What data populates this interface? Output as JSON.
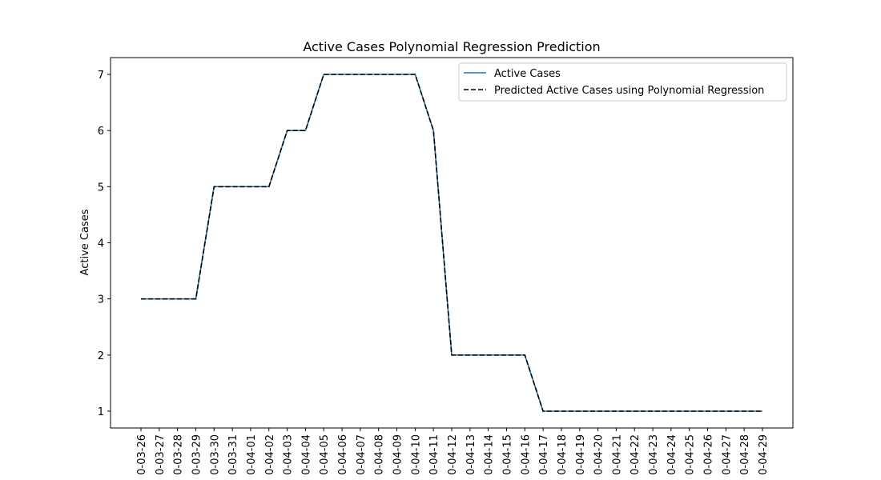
{
  "chart_data": {
    "type": "line",
    "title": "Active Cases Polynomial Regression Prediction",
    "xlabel": "",
    "ylabel": "Active Cases",
    "x": [
      "0-03-26",
      "0-03-27",
      "0-03-28",
      "0-03-29",
      "0-03-30",
      "0-03-31",
      "0-04-01",
      "0-04-02",
      "0-04-03",
      "0-04-04",
      "0-04-05",
      "0-04-06",
      "0-04-07",
      "0-04-08",
      "0-04-09",
      "0-04-10",
      "0-04-11",
      "0-04-12",
      "0-04-13",
      "0-04-14",
      "0-04-15",
      "0-04-16",
      "0-04-17",
      "0-04-18",
      "0-04-19",
      "0-04-20",
      "0-04-21",
      "0-04-22",
      "0-04-23",
      "0-04-24",
      "0-04-25",
      "0-04-26",
      "0-04-27",
      "0-04-28",
      "0-04-29"
    ],
    "yticks": [
      1,
      2,
      3,
      4,
      5,
      6,
      7
    ],
    "ylim": [
      0.7,
      7.3
    ],
    "grid": false,
    "legend_position": "top-right",
    "series": [
      {
        "name": "Active Cases",
        "color": "#1f77b4",
        "style": "solid",
        "values": [
          3,
          3,
          3,
          3,
          5,
          5,
          5,
          5,
          6,
          6,
          7,
          7,
          7,
          7,
          7,
          7,
          6,
          2,
          2,
          2,
          2,
          2,
          1,
          1,
          1,
          1,
          1,
          1,
          1,
          1,
          1,
          1,
          1,
          1,
          1
        ]
      },
      {
        "name": "Predicted Active Cases using Polynomial Regression",
        "color": "#000000",
        "style": "dashed",
        "values": [
          3,
          3,
          3,
          3,
          5,
          5,
          5,
          5,
          6,
          6,
          7,
          7,
          7,
          7,
          7,
          7,
          6,
          2,
          2,
          2,
          2,
          2,
          1,
          1,
          1,
          1,
          1,
          1,
          1,
          1,
          1,
          1,
          1,
          1,
          1
        ]
      }
    ]
  }
}
